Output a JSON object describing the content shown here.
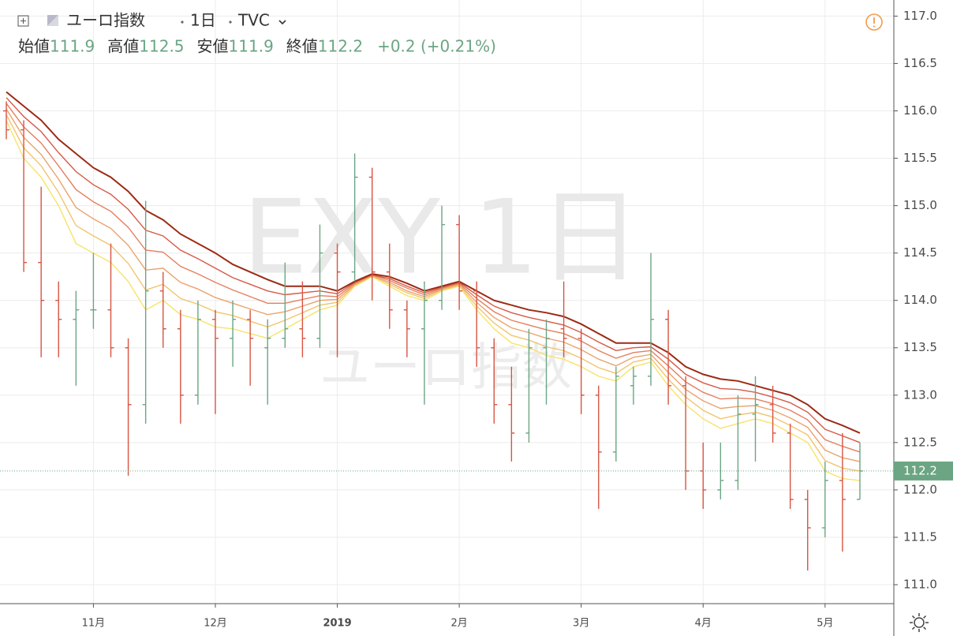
{
  "chart_data": {
    "type": "ohlc",
    "title": "ユーロ指数",
    "interval": "1日",
    "source": "TVC",
    "watermark": "EXY 1日",
    "watermark_sub": "ユーロ指数",
    "ohlc_header": [
      {
        "label": "始値",
        "value": 111.9
      },
      {
        "label": "高値",
        "value": 112.5
      },
      {
        "label": "安値",
        "value": 111.9
      },
      {
        "label": "終値",
        "value": 112.2
      }
    ],
    "change": "+0.2 (+0.21%)",
    "last_value": 112.2,
    "up_color": "#6ba583",
    "down_color": "#d75442",
    "categories": [
      null,
      null,
      null,
      null,
      null,
      "11月",
      null,
      null,
      null,
      null,
      null,
      null,
      "12月",
      null,
      null,
      null,
      null,
      null,
      null,
      "2019",
      null,
      null,
      null,
      null,
      null,
      null,
      "2月",
      null,
      null,
      null,
      null,
      null,
      null,
      "3月",
      null,
      null,
      null,
      null,
      null,
      null,
      "4月",
      null,
      null,
      null,
      null,
      null,
      null,
      "5月",
      null,
      null
    ],
    "open": [
      116.0,
      115.8,
      114.4,
      114.0,
      113.8,
      113.9,
      113.9,
      113.5,
      112.9,
      114.1,
      113.7,
      113.0,
      113.8,
      113.6,
      113.8,
      113.5,
      113.6,
      113.7,
      113.6,
      114.5,
      114.3,
      115.3,
      114.3,
      113.9,
      113.7,
      114.0,
      114.8,
      114.1,
      113.5,
      112.9,
      112.6,
      113.5,
      113.7,
      113.6,
      113.0,
      112.4,
      113.1,
      113.2,
      113.8,
      113.1,
      112.2,
      112.0,
      112.1,
      112.8,
      112.9,
      112.6,
      111.9,
      111.6,
      112.1,
      111.9
    ],
    "high": [
      116.1,
      115.9,
      115.2,
      114.2,
      114.1,
      114.5,
      114.6,
      113.6,
      115.05,
      114.3,
      113.9,
      114.0,
      113.9,
      114.0,
      113.9,
      113.8,
      114.4,
      114.2,
      114.8,
      114.6,
      115.55,
      115.4,
      114.6,
      114.0,
      114.2,
      115.0,
      114.9,
      114.2,
      113.6,
      113.3,
      113.7,
      113.8,
      114.2,
      113.7,
      113.1,
      113.3,
      113.3,
      114.5,
      113.9,
      113.2,
      112.5,
      112.5,
      113.0,
      113.2,
      113.1,
      112.7,
      112.0,
      112.3,
      112.6,
      112.5
    ],
    "low": [
      115.7,
      114.3,
      113.4,
      113.4,
      113.1,
      113.7,
      113.4,
      112.15,
      112.7,
      113.5,
      112.7,
      112.9,
      112.8,
      113.3,
      113.1,
      112.9,
      113.5,
      113.4,
      113.5,
      113.4,
      114.2,
      114.0,
      113.7,
      113.4,
      112.9,
      113.9,
      113.9,
      113.3,
      112.7,
      112.3,
      112.5,
      112.9,
      113.4,
      112.8,
      111.8,
      112.3,
      112.9,
      113.1,
      112.9,
      112.0,
      111.8,
      111.9,
      112.0,
      112.3,
      112.5,
      111.8,
      111.15,
      111.5,
      111.35,
      111.9
    ],
    "close": [
      115.8,
      114.4,
      114.0,
      113.8,
      113.9,
      113.9,
      113.5,
      112.9,
      114.1,
      113.7,
      113.0,
      113.8,
      113.6,
      113.8,
      113.6,
      113.6,
      113.7,
      113.6,
      114.5,
      114.3,
      115.3,
      114.3,
      113.9,
      113.7,
      114.0,
      114.8,
      114.1,
      113.5,
      112.9,
      112.6,
      113.5,
      113.6,
      113.6,
      113.0,
      112.4,
      113.2,
      113.2,
      113.8,
      113.1,
      112.2,
      112.0,
      112.1,
      112.8,
      112.9,
      112.6,
      111.9,
      111.6,
      112.1,
      111.9,
      112.2
    ],
    "ma_series": [
      {
        "color": "#f7e36c",
        "values": [
          115.9,
          115.5,
          115.3,
          115.0,
          114.6,
          114.5,
          114.4,
          114.2,
          113.9,
          114.0,
          113.85,
          113.8,
          113.72,
          113.7,
          113.65,
          113.6,
          113.7,
          113.8,
          113.9,
          113.95,
          114.15,
          114.25,
          114.15,
          114.05,
          114.0,
          114.1,
          114.15,
          113.9,
          113.7,
          113.55,
          113.5,
          113.42,
          113.38,
          113.3,
          113.2,
          113.15,
          113.3,
          113.35,
          113.1,
          112.9,
          112.75,
          112.65,
          112.7,
          112.75,
          112.7,
          112.6,
          112.5,
          112.2,
          112.12,
          112.1
        ]
      },
      {
        "color": "#f3c46d",
        "values": [
          115.96,
          115.61,
          115.42,
          115.14,
          114.79,
          114.68,
          114.58,
          114.39,
          114.11,
          114.17,
          114.02,
          113.96,
          113.88,
          113.84,
          113.78,
          113.72,
          113.79,
          113.87,
          113.95,
          113.98,
          114.16,
          114.26,
          114.17,
          114.08,
          114.02,
          114.11,
          114.16,
          113.94,
          113.76,
          113.63,
          113.58,
          113.51,
          113.47,
          113.39,
          113.29,
          113.23,
          113.35,
          113.39,
          113.17,
          112.98,
          112.84,
          112.75,
          112.79,
          112.82,
          112.77,
          112.68,
          112.58,
          112.31,
          112.23,
          112.2
        ]
      },
      {
        "color": "#eca26b",
        "values": [
          116.02,
          115.72,
          115.54,
          115.28,
          114.98,
          114.86,
          114.76,
          114.58,
          114.32,
          114.34,
          114.19,
          114.12,
          114.03,
          113.97,
          113.91,
          113.85,
          113.88,
          113.94,
          114.0,
          114.01,
          114.17,
          114.26,
          114.19,
          114.1,
          114.04,
          114.12,
          114.17,
          113.98,
          113.82,
          113.71,
          113.66,
          113.6,
          113.56,
          113.48,
          113.38,
          113.31,
          113.4,
          113.43,
          113.24,
          113.06,
          112.94,
          112.86,
          112.88,
          112.89,
          112.84,
          112.76,
          112.66,
          112.42,
          112.34,
          112.3
        ]
      },
      {
        "color": "#e47f5e",
        "values": [
          116.08,
          115.83,
          115.66,
          115.42,
          115.17,
          115.04,
          114.94,
          114.77,
          114.53,
          114.51,
          114.36,
          114.28,
          114.19,
          114.11,
          114.04,
          113.97,
          113.97,
          114.01,
          114.05,
          114.04,
          114.18,
          114.27,
          114.21,
          114.13,
          114.06,
          114.13,
          114.18,
          114.02,
          113.88,
          113.79,
          113.74,
          113.69,
          113.65,
          113.57,
          113.47,
          113.39,
          113.45,
          113.47,
          113.31,
          113.14,
          113.03,
          112.96,
          112.97,
          112.96,
          112.91,
          112.84,
          112.74,
          112.53,
          112.46,
          112.4
        ]
      },
      {
        "color": "#d65a45",
        "values": [
          116.14,
          115.94,
          115.78,
          115.56,
          115.36,
          115.22,
          115.12,
          114.96,
          114.74,
          114.68,
          114.53,
          114.44,
          114.34,
          114.24,
          114.17,
          114.1,
          114.06,
          114.08,
          114.1,
          114.07,
          114.19,
          114.27,
          114.23,
          114.15,
          114.08,
          114.14,
          114.19,
          114.06,
          113.94,
          113.87,
          113.82,
          113.78,
          113.74,
          113.66,
          113.56,
          113.47,
          113.5,
          113.51,
          113.38,
          113.22,
          113.13,
          113.07,
          113.06,
          113.03,
          112.98,
          112.92,
          112.82,
          112.64,
          112.57,
          112.5
        ]
      },
      {
        "color": "#9c2b14",
        "values": [
          116.2,
          116.05,
          115.9,
          115.7,
          115.55,
          115.4,
          115.3,
          115.15,
          114.95,
          114.85,
          114.7,
          114.6,
          114.5,
          114.38,
          114.3,
          114.22,
          114.15,
          114.15,
          114.15,
          114.1,
          114.2,
          114.28,
          114.25,
          114.18,
          114.1,
          114.15,
          114.2,
          114.1,
          114.0,
          113.95,
          113.9,
          113.87,
          113.83,
          113.75,
          113.65,
          113.55,
          113.55,
          113.55,
          113.45,
          113.3,
          113.22,
          113.17,
          113.15,
          113.1,
          113.05,
          113.0,
          112.9,
          112.75,
          112.68,
          112.6
        ]
      }
    ],
    "ylim": [
      110.8,
      117.17
    ],
    "yticks": [
      {
        "value": 111,
        "label": "111.0"
      },
      111.5,
      {
        "value": 112,
        "label": "112.0"
      },
      112.5,
      {
        "value": 113,
        "label": "113.0"
      },
      113.5,
      {
        "value": 114,
        "label": "114.0"
      },
      114.5,
      {
        "value": 115,
        "label": "115.0"
      },
      115.5,
      {
        "value": 116,
        "label": "116.0"
      },
      116.5,
      {
        "value": 117,
        "label": "117.0"
      }
    ],
    "grid": true
  }
}
